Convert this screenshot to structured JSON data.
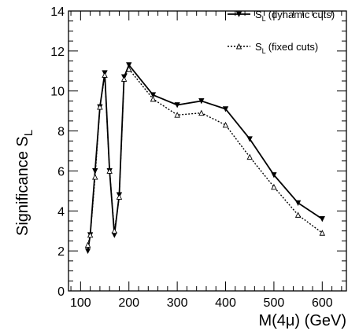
{
  "chart_data": {
    "type": "line",
    "xlabel": "M(4μ) (GeV)",
    "ylabel": "Significance S",
    "ylabel_sub": "L",
    "xlim": [
      75,
      650
    ],
    "ylim": [
      0,
      14
    ],
    "x_ticks": [
      100,
      200,
      300,
      400,
      500,
      600
    ],
    "y_ticks": [
      0,
      2,
      4,
      6,
      8,
      10,
      12,
      14
    ],
    "grid": false,
    "legend_position": "top-right",
    "series": [
      {
        "name": "S",
        "name_sub": "L",
        "name_suffix": "(dynamic cuts)",
        "line_style": "solid",
        "marker": "filled-down-triangle",
        "x": [
          115,
          120,
          130,
          140,
          150,
          160,
          170,
          180,
          190,
          200,
          250,
          300,
          350,
          400,
          450,
          500,
          550,
          600
        ],
        "y": [
          2.0,
          2.8,
          6.0,
          9.2,
          10.9,
          6.0,
          2.8,
          4.8,
          10.7,
          11.3,
          9.8,
          9.3,
          9.5,
          9.1,
          7.6,
          5.8,
          4.4,
          3.6
        ]
      },
      {
        "name": "S",
        "name_sub": "L",
        "name_suffix": "(fixed cuts)",
        "line_style": "dotted",
        "marker": "open-up-triangle",
        "x": [
          115,
          120,
          130,
          140,
          150,
          160,
          170,
          180,
          190,
          200,
          250,
          300,
          350,
          400,
          450,
          500,
          550,
          600
        ],
        "y": [
          2.3,
          2.8,
          5.7,
          9.2,
          10.8,
          6.0,
          3.0,
          4.7,
          10.6,
          11.1,
          9.6,
          8.8,
          8.9,
          8.3,
          6.7,
          5.2,
          3.8,
          2.9
        ]
      }
    ]
  }
}
